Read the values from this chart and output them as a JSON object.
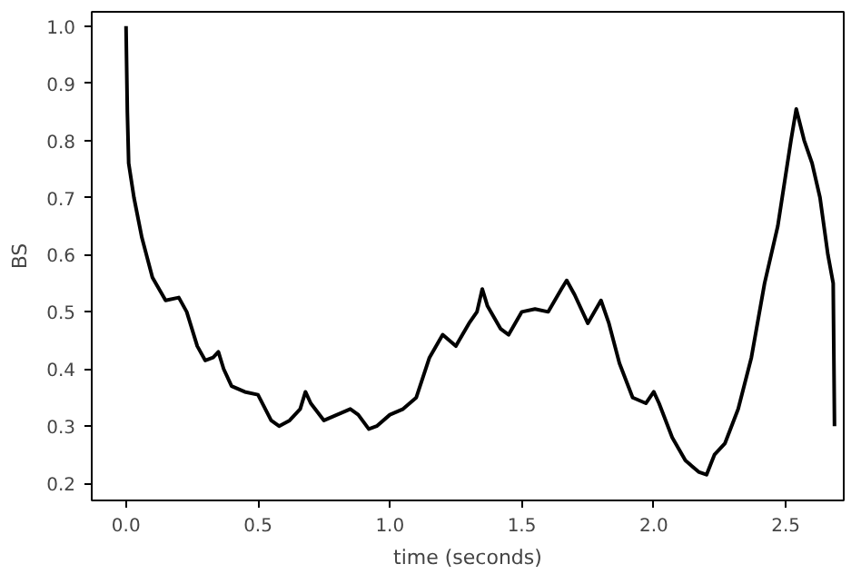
{
  "chart_data": {
    "type": "line",
    "xlabel": "time (seconds)",
    "ylabel": "BS",
    "xlim": [
      -0.13,
      2.72
    ],
    "ylim": [
      0.17,
      1.025
    ],
    "xticks": [
      {
        "value": 0,
        "label": "0.0"
      },
      0.5,
      {
        "value": 1,
        "label": "1.0"
      },
      1.5,
      {
        "value": 2,
        "label": "2.0"
      },
      2.5
    ],
    "yticks": [
      0.2,
      0.3,
      0.4,
      0.5,
      0.6,
      0.7,
      0.8,
      0.9,
      {
        "value": 1,
        "label": "1.0"
      }
    ],
    "grid": false,
    "marker": "none",
    "line_style": "solid",
    "series": [
      {
        "color": "#000000",
        "x": [
          0,
          0.005,
          0.01,
          0.03,
          0.06,
          0.1,
          0.15,
          0.2,
          0.23,
          0.27,
          0.3,
          0.33,
          0.35,
          0.37,
          0.4,
          0.45,
          0.5,
          0.55,
          0.58,
          0.62,
          0.66,
          0.68,
          0.7,
          0.75,
          0.8,
          0.85,
          0.88,
          0.92,
          0.95,
          1.0,
          1.05,
          1.1,
          1.15,
          1.2,
          1.25,
          1.3,
          1.33,
          1.35,
          1.37,
          1.42,
          1.45,
          1.5,
          1.55,
          1.6,
          1.65,
          1.67,
          1.7,
          1.75,
          1.8,
          1.83,
          1.87,
          1.92,
          1.97,
          2.0,
          2.02,
          2.07,
          2.12,
          2.17,
          2.2,
          2.23,
          2.27,
          2.32,
          2.37,
          2.42,
          2.47,
          2.52,
          2.54,
          2.57,
          2.6,
          2.63,
          2.66,
          2.68,
          2.685
        ],
        "values": [
          1.0,
          0.85,
          0.76,
          0.7,
          0.63,
          0.56,
          0.52,
          0.525,
          0.5,
          0.44,
          0.415,
          0.42,
          0.43,
          0.4,
          0.37,
          0.36,
          0.355,
          0.31,
          0.3,
          0.31,
          0.33,
          0.36,
          0.34,
          0.31,
          0.32,
          0.33,
          0.32,
          0.295,
          0.3,
          0.32,
          0.33,
          0.35,
          0.42,
          0.46,
          0.44,
          0.48,
          0.5,
          0.54,
          0.51,
          0.47,
          0.46,
          0.5,
          0.505,
          0.5,
          0.54,
          0.555,
          0.53,
          0.48,
          0.52,
          0.48,
          0.41,
          0.35,
          0.34,
          0.36,
          0.34,
          0.28,
          0.24,
          0.22,
          0.215,
          0.25,
          0.27,
          0.33,
          0.42,
          0.55,
          0.65,
          0.8,
          0.855,
          0.8,
          0.76,
          0.7,
          0.6,
          0.55,
          0.3
        ]
      }
    ]
  }
}
